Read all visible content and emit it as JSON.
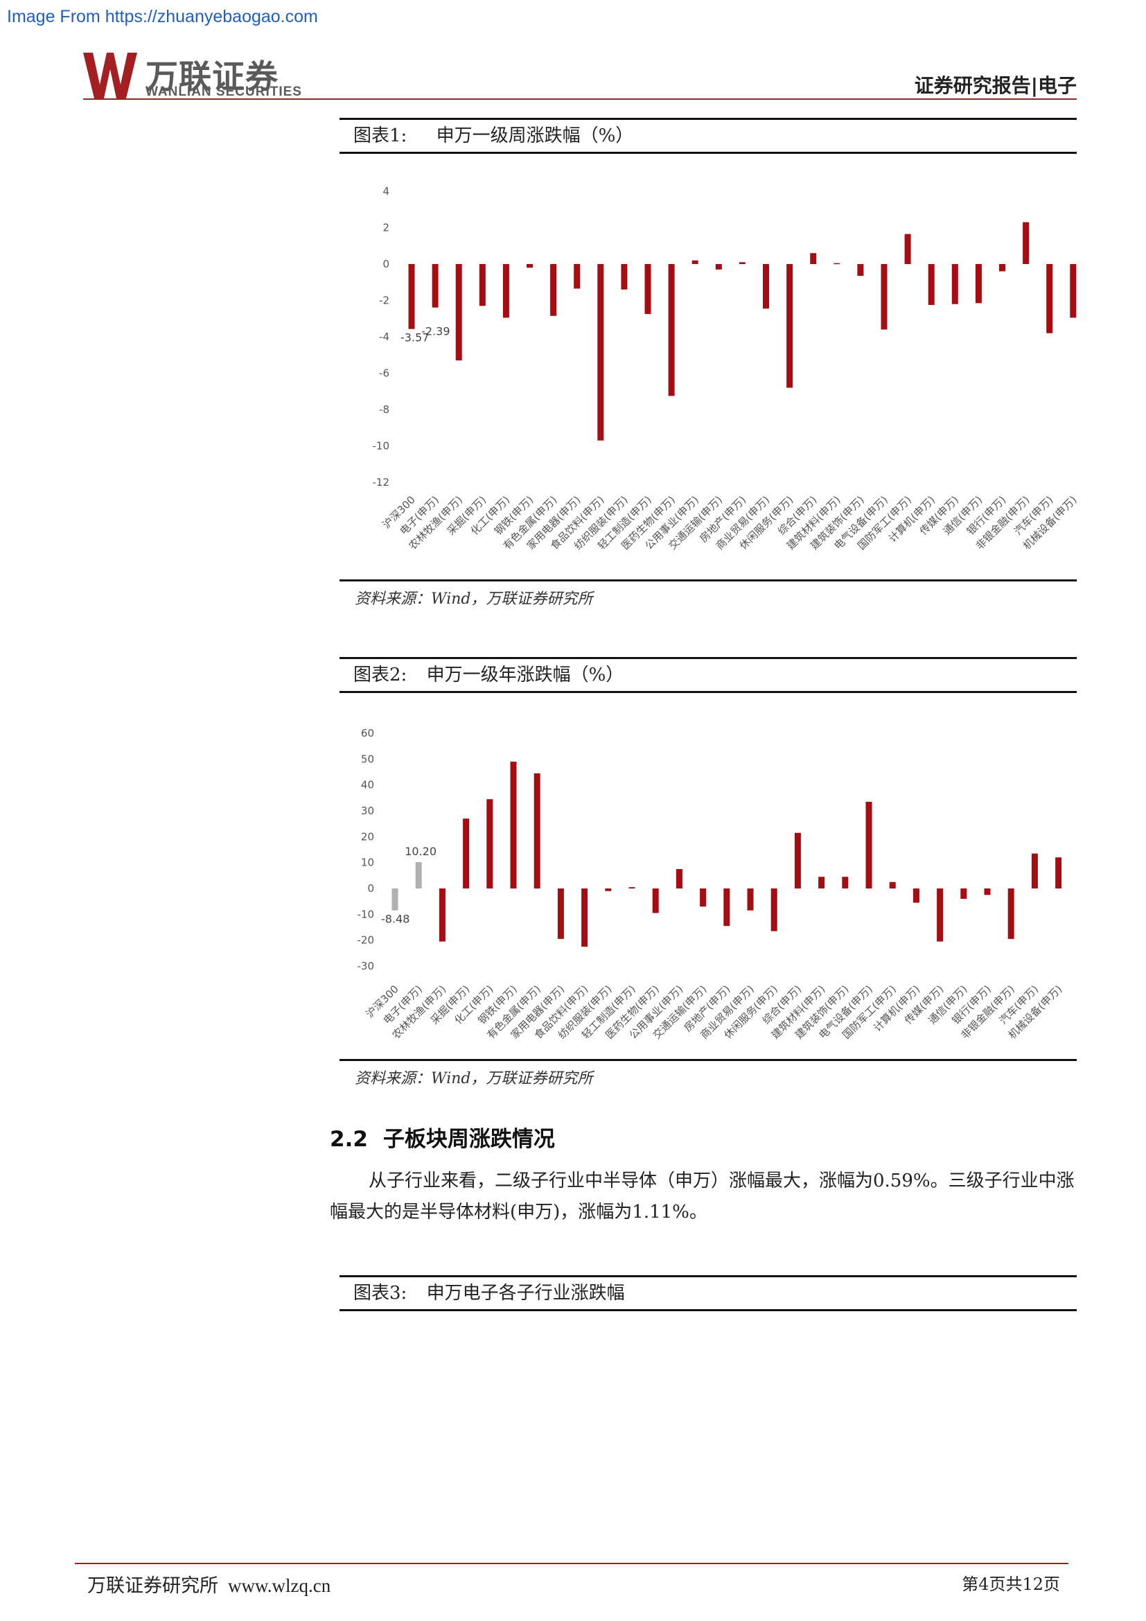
{
  "watermark": "Image From https://zhuanyebaogao.com",
  "header": {
    "logo_cn": "万联证券",
    "logo_en": "WANLIAN SECURITIES",
    "report_type": "证券研究报告|电子"
  },
  "figure1": {
    "label": "图表1:",
    "title": "申万一级周涨跌幅（%）",
    "source": "资料来源：Wind，万联证券研究所"
  },
  "figure2": {
    "label": "图表2:",
    "title": "申万一级年涨跌幅（%）",
    "source": "资料来源：Wind，万联证券研究所"
  },
  "figure3": {
    "label": "图表3:",
    "title": "申万电子各子行业涨跌幅"
  },
  "section": {
    "number": "2.2",
    "title": "子板块周涨跌情况",
    "paragraph": "从子行业来看，二级子行业中半导体（申万）涨幅最大，涨幅为0.59%。三级子行业中涨幅最大的是半导体材料(申万)，涨幅为1.11%。"
  },
  "footer": {
    "left": "万联证券研究所",
    "url": "www.wlzq.cn",
    "page": "第4页共12页"
  },
  "colors": {
    "bar_main": "#a50d12",
    "bar_highlight": "#b0b0b0",
    "rule_red": "#a31f22"
  },
  "chart_data": [
    {
      "type": "bar",
      "title": "申万一级周涨跌幅（%）",
      "ylim": [
        -12,
        4
      ],
      "yticks": [
        4,
        2,
        0,
        -2,
        -4,
        -6,
        -8,
        -10,
        -12
      ],
      "categories": [
        "沪深300",
        "电子(申万)",
        "农林牧渔(申万)",
        "采掘(申万)",
        "化工(申万)",
        "钢铁(申万)",
        "有色金属(申万)",
        "家用电器(申万)",
        "食品饮料(申万)",
        "纺织服装(申万)",
        "轻工制造(申万)",
        "医药生物(申万)",
        "公用事业(申万)",
        "交通运输(申万)",
        "房地产(申万)",
        "商业贸易(申万)",
        "休闲服务(申万)",
        "综合(申万)",
        "建筑材料(申万)",
        "建筑装饰(申万)",
        "电气设备(申万)",
        "国防军工(申万)",
        "计算机(申万)",
        "传媒(申万)",
        "通信(申万)",
        "银行(申万)",
        "非银金融(申万)",
        "汽车(申万)",
        "机械设备(申万)"
      ],
      "values": [
        -3.57,
        -2.39,
        -5.3,
        -2.3,
        -2.95,
        -0.2,
        -2.85,
        -1.35,
        -9.7,
        -1.4,
        -2.75,
        -7.25,
        0.2,
        -0.3,
        0.1,
        -2.45,
        -6.8,
        0.6,
        0.05,
        -0.65,
        -3.6,
        1.65,
        -2.25,
        -2.2,
        -2.15,
        -0.4,
        2.3,
        -3.8,
        -2.95
      ],
      "data_labels": [
        {
          "index": 0,
          "text": "-3.57"
        },
        {
          "index": 1,
          "text": "-2.39"
        }
      ]
    },
    {
      "type": "bar",
      "title": "申万一级年涨跌幅（%）",
      "ylim": [
        -30,
        60
      ],
      "yticks": [
        60,
        50,
        40,
        30,
        20,
        10,
        0,
        -10,
        -20,
        -30
      ],
      "highlight": [
        0,
        1
      ],
      "categories": [
        "沪深300",
        "电子(申万)",
        "农林牧渔(申万)",
        "采掘(申万)",
        "化工(申万)",
        "钢铁(申万)",
        "有色金属(申万)",
        "家用电器(申万)",
        "食品饮料(申万)",
        "纺织服装(申万)",
        "轻工制造(申万)",
        "医药生物(申万)",
        "公用事业(申万)",
        "交通运输(申万)",
        "房地产(申万)",
        "商业贸易(申万)",
        "休闲服务(申万)",
        "综合(申万)",
        "建筑材料(申万)",
        "建筑装饰(申万)",
        "电气设备(申万)",
        "国防军工(申万)",
        "计算机(申万)",
        "传媒(申万)",
        "通信(申万)",
        "银行(申万)",
        "非银金融(申万)",
        "汽车(申万)",
        "机械设备(申万)"
      ],
      "values": [
        -8.48,
        10.2,
        -20.5,
        27,
        34.5,
        49,
        44.5,
        -19.5,
        -22.5,
        -1,
        0.5,
        -9.5,
        7.5,
        -7,
        -14.5,
        -8.5,
        -16.5,
        21.5,
        4.5,
        4.5,
        33.5,
        2.5,
        -5.5,
        -20.5,
        -4,
        -2.5,
        -19.5,
        13.5,
        12
      ],
      "data_labels": [
        {
          "index": 0,
          "text": "-8.48"
        },
        {
          "index": 1,
          "text": "10.20"
        }
      ]
    }
  ]
}
